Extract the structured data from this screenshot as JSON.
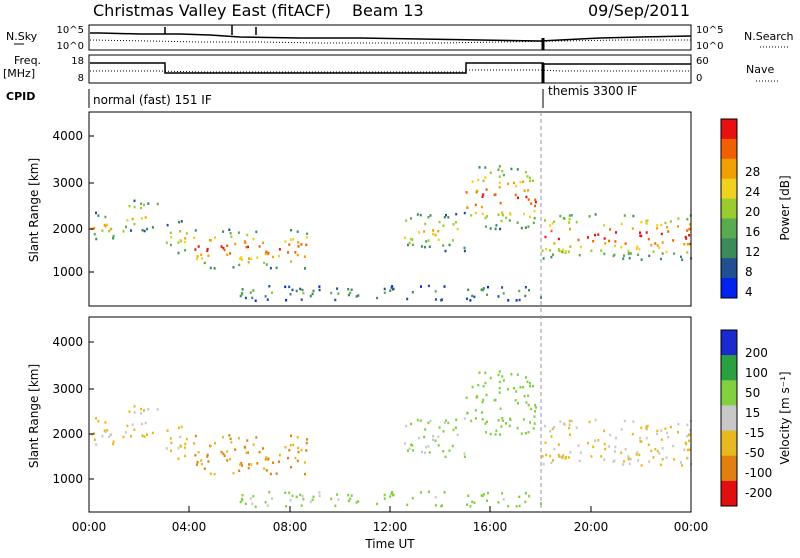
{
  "header": {
    "title": "Christmas Valley East (fitACF)",
    "beam": "Beam 13",
    "date": "09/Sep/2011"
  },
  "noise_panel": {
    "left_label": "N.Sky",
    "right_label": "N.Search",
    "left_ticks": [
      "10^5",
      "10^0"
    ],
    "right_ticks": [
      "10^5",
      "10^0"
    ]
  },
  "freq_panel": {
    "left_label_line1": "Freq.",
    "left_label_line2": "[MHz]",
    "right_label": "Nave",
    "left_ticks": [
      "18",
      "8"
    ],
    "right_ticks": [
      "60",
      "0"
    ]
  },
  "cpid_panel": {
    "label": "CPID",
    "segments": [
      {
        "start_hour": 0,
        "end_hour": 18,
        "text": "normal (fast) 151 IF"
      },
      {
        "start_hour": 18,
        "end_hour": 24,
        "text": "themis 3300 IF"
      }
    ]
  },
  "power_panel": {
    "ylabel": "Slant Range [km]",
    "yticks": [
      "4000",
      "3000",
      "2000",
      "1000"
    ],
    "colorbar_title": "Power [dB]",
    "colorbar_labels": [
      "28",
      "24",
      "20",
      "16",
      "12",
      "8",
      "4"
    ]
  },
  "velocity_panel": {
    "ylabel": "Slant Range [km]",
    "yticks": [
      "4000",
      "3000",
      "2000",
      "1000"
    ],
    "colorbar_title": "Velocity [m s⁻¹]",
    "colorbar_labels": [
      "200",
      "100",
      "50",
      "15",
      "-15",
      "-50",
      "-100",
      "-200"
    ]
  },
  "x_axis": {
    "title": "Time UT",
    "ticks": [
      "00:00",
      "04:00",
      "08:00",
      "12:00",
      "16:00",
      "20:00",
      "00:00"
    ]
  },
  "colors": {
    "power_scale": [
      "#0022ee",
      "#205090",
      "#3b8a5a",
      "#5aaa50",
      "#9acc30",
      "#f0d020",
      "#f0a000",
      "#f06000",
      "#e81010"
    ],
    "velocity_scale": [
      "#1a2ad0",
      "#2aa040",
      "#80d040",
      "#c8c8c8",
      "#e8b820",
      "#e08010",
      "#e01010"
    ]
  },
  "chart_data": {
    "type": "heatmap",
    "x_unit": "hours UT",
    "xlim": [
      0,
      24
    ],
    "ylim": [
      0,
      4500
    ],
    "y_unit": "km",
    "scatter_bands": [
      {
        "start": 0.0,
        "end": 1.4,
        "r_lo": 1550,
        "r_hi": 2200,
        "power": 20,
        "velocity": -15
      },
      {
        "start": 1.4,
        "end": 2.8,
        "r_lo": 1750,
        "r_hi": 2500,
        "power": 22,
        "velocity": -15
      },
      {
        "start": 3.0,
        "end": 4.2,
        "r_lo": 1200,
        "r_hi": 2000,
        "power": 18,
        "velocity": -30
      },
      {
        "start": 4.2,
        "end": 8.8,
        "r_lo": 900,
        "r_hi": 1800,
        "power": 26,
        "velocity": -50
      },
      {
        "start": 12.5,
        "end": 15.0,
        "r_lo": 1300,
        "r_hi": 2200,
        "power": 20,
        "velocity": 20
      },
      {
        "start": 15.0,
        "end": 17.8,
        "r_lo": 1800,
        "r_hi": 3300,
        "power": 25,
        "velocity": 40
      },
      {
        "start": 18.0,
        "end": 24.0,
        "r_lo": 1100,
        "r_hi": 2200,
        "power": 26,
        "velocity": -15
      },
      {
        "start": 6.0,
        "end": 18.0,
        "r_lo": 150,
        "r_hi": 500,
        "power": 12,
        "velocity": 30
      }
    ]
  }
}
